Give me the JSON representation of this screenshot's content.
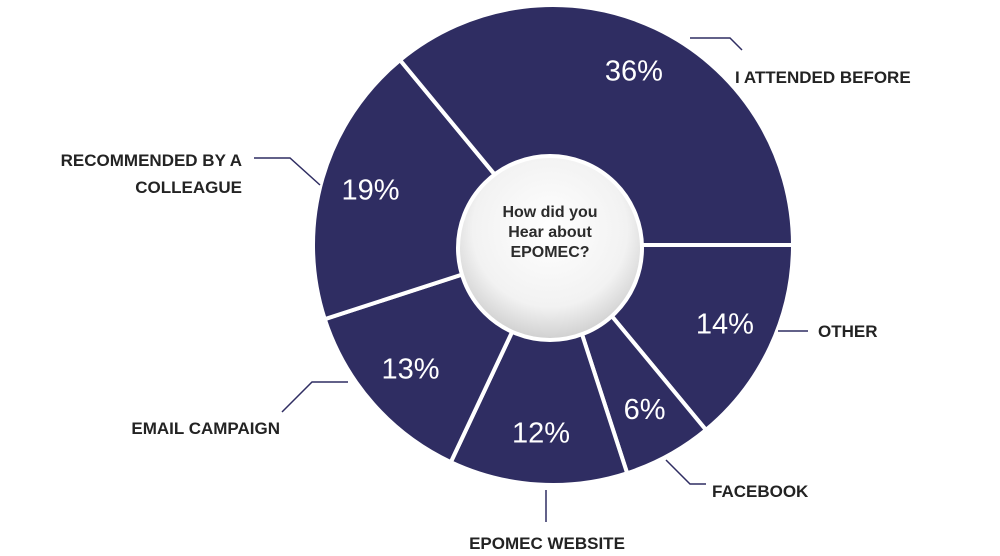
{
  "chart_data": {
    "type": "pie",
    "title": "How did you Hear about EPOMEC?",
    "categories": [
      "OTHER",
      "FACEBOOK",
      "EPOMEC WEBSITE",
      "EMAIL CAMPAIGN",
      "RECOMMENDED BY A COLLEAGUE",
      "I ATTENDED BEFORE"
    ],
    "values": [
      14,
      6,
      12,
      13,
      19,
      36
    ],
    "value_labels": [
      "14%",
      "6%",
      "12%",
      "13%",
      "19%",
      "36%"
    ],
    "color": "#2f2d62"
  }
}
